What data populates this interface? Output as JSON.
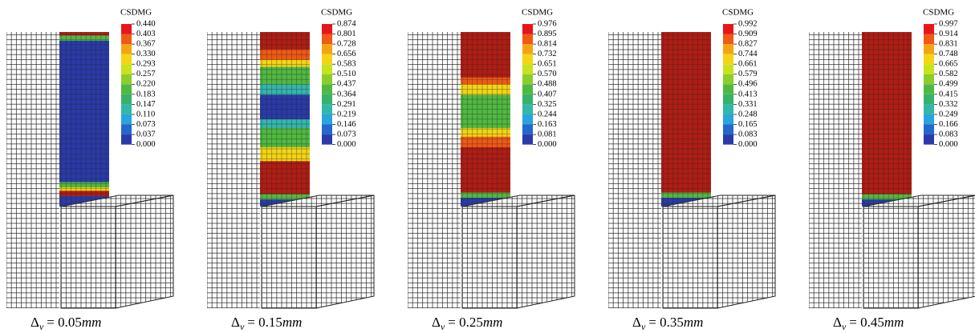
{
  "panels": [
    {
      "legend_title": "CSDMG",
      "legend_values": [
        "0.440",
        "0.403",
        "0.367",
        "0.330",
        "0.293",
        "0.257",
        "0.220",
        "0.183",
        "0.147",
        "0.110",
        "0.073",
        "0.037",
        "0.000"
      ],
      "caption": {
        "symbol": "Δ",
        "subscript": "v",
        "equation": "= 0.05",
        "unit": "mm"
      }
    },
    {
      "legend_title": "CSDMG",
      "legend_values": [
        "0.874",
        "0.801",
        "0.728",
        "0.656",
        "0.583",
        "0.510",
        "0.437",
        "0.364",
        "0.291",
        "0.219",
        "0.146",
        "0.073",
        "0.000"
      ],
      "caption": {
        "symbol": "Δ",
        "subscript": "v",
        "equation": "= 0.15",
        "unit": "mm"
      }
    },
    {
      "legend_title": "CSDMG",
      "legend_values": [
        "0.976",
        "0.895",
        "0.814",
        "0.732",
        "0.651",
        "0.570",
        "0.488",
        "0.407",
        "0.325",
        "0.244",
        "0.163",
        "0.081",
        "0.000"
      ],
      "caption": {
        "symbol": "Δ",
        "subscript": "v",
        "equation": "= 0.25",
        "unit": "mm"
      }
    },
    {
      "legend_title": "CSDMG",
      "legend_values": [
        "0.992",
        "0.909",
        "0.827",
        "0.744",
        "0.661",
        "0.579",
        "0.496",
        "0.413",
        "0.331",
        "0.248",
        "0.165",
        "0.083",
        "0.000"
      ],
      "caption": {
        "symbol": "Δ",
        "subscript": "v",
        "equation": "= 0.35",
        "unit": "mm"
      }
    },
    {
      "legend_title": "CSDMG",
      "legend_values": [
        "0.997",
        "0.914",
        "0.831",
        "0.748",
        "0.665",
        "0.582",
        "0.499",
        "0.415",
        "0.332",
        "0.249",
        "0.166",
        "0.083",
        "0.000"
      ],
      "caption": {
        "symbol": "Δ",
        "subscript": "v",
        "equation": "= 0.45",
        "unit": "mm"
      }
    }
  ]
}
